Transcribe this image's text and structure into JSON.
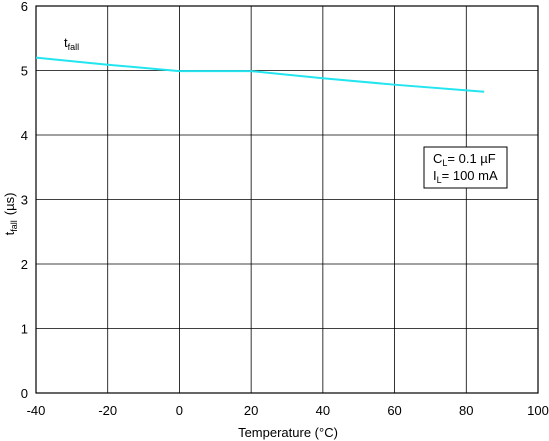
{
  "chart_data": {
    "type": "line",
    "xlabel": "Temperature (°C)",
    "ylabel": {
      "main": "t",
      "sub": "fall",
      "unit": "(µs)"
    },
    "xlim": [
      -40,
      100
    ],
    "ylim": [
      0,
      6
    ],
    "x_ticks": [
      "-40",
      "-20",
      "0",
      "20",
      "40",
      "60",
      "80",
      "100"
    ],
    "y_ticks": [
      "0",
      "1",
      "2",
      "3",
      "4",
      "5",
      "6"
    ],
    "grid": true,
    "colors": {
      "series": "#22e5f0",
      "grid": "#000000"
    },
    "series": [
      {
        "label": {
          "main": "t",
          "sub": "fall"
        },
        "x": [
          -40,
          -20,
          0,
          20,
          40,
          60,
          85
        ],
        "y": [
          5.2,
          5.09,
          4.99,
          4.99,
          4.88,
          4.78,
          4.67
        ]
      }
    ],
    "annotation": {
      "line1": {
        "main": "C",
        "sub": "L",
        "rest": "= 0.1 µF"
      },
      "line2": {
        "main": "I",
        "sub": "L",
        "rest": "= 100 mA"
      }
    }
  }
}
